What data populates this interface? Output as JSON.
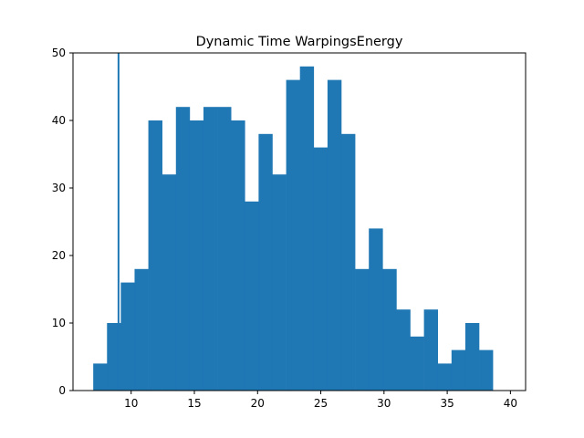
{
  "chart_data": {
    "type": "bar",
    "title": "Dynamic Time WarpingsEnergy",
    "xlabel": "",
    "ylabel": "",
    "xlim": [
      5.4,
      41.2
    ],
    "ylim": [
      0,
      50
    ],
    "xticks": [
      10,
      15,
      20,
      25,
      30,
      35,
      40
    ],
    "yticks": [
      0,
      10,
      20,
      30,
      40,
      50
    ],
    "grid": false,
    "bar_color": "#1f77b4",
    "bin_edges": [
      7.0,
      8.09,
      9.18,
      10.27,
      11.36,
      12.45,
      13.54,
      14.63,
      15.72,
      16.81,
      17.9,
      18.99,
      20.08,
      21.17,
      22.26,
      23.35,
      24.44,
      25.53,
      26.62,
      27.71,
      28.8,
      29.89,
      30.98,
      32.07,
      33.16,
      34.25,
      35.34,
      36.43,
      37.52,
      38.61,
      39.7
    ],
    "counts": [
      4,
      10,
      16,
      18,
      40,
      32,
      42,
      40,
      42,
      42,
      40,
      28,
      38,
      32,
      46,
      48,
      36,
      46,
      38,
      18,
      24,
      18,
      12,
      8,
      12,
      4,
      6,
      10,
      6,
      0
    ],
    "vertical_line": {
      "x": 9.0,
      "y_from": 0,
      "y_to": 50
    }
  }
}
